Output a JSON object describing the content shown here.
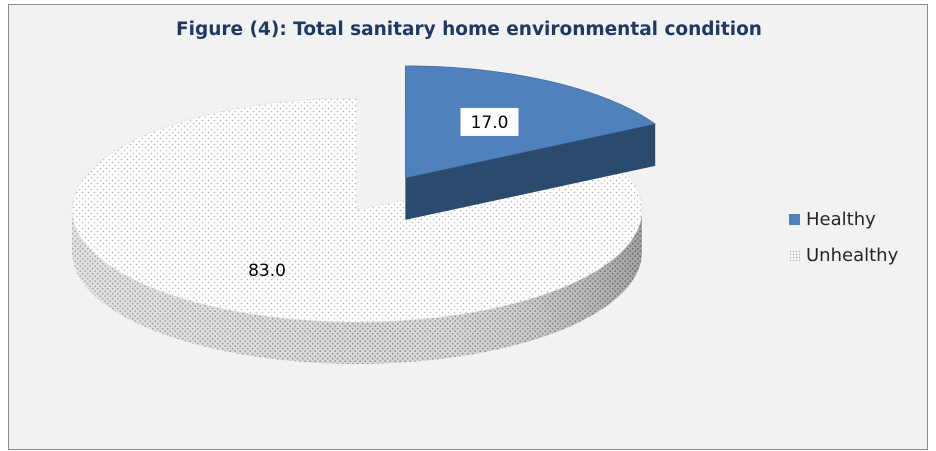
{
  "chart_data": {
    "type": "pie",
    "title": "Figure (4): Total sanitary home environmental condition",
    "categories": [
      "Healthy",
      "Unhealthy"
    ],
    "values": [
      17.0,
      83.0
    ],
    "data_labels": [
      "17.0",
      "83.0"
    ],
    "legend_position": "right",
    "exploded_slice": "Healthy",
    "colors": {
      "Healthy": "#4f81bd",
      "Healthy_side": "#2a4a6e",
      "Unhealthy": "#ffffff",
      "Unhealthy_dots": "#bfbfbf",
      "Unhealthy_side": "#b3b3b3",
      "title": "#1f3864"
    }
  }
}
